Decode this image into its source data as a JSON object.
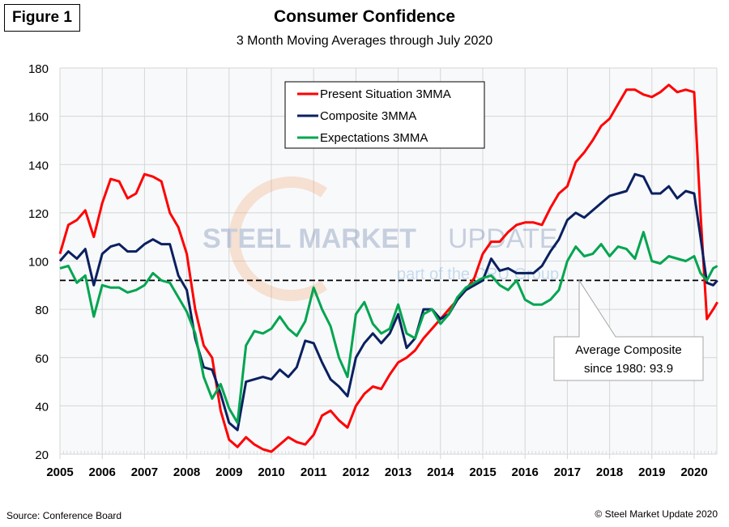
{
  "figure_label": "Figure 1",
  "source": "Source: Conference Board",
  "copyright": "© Steel Market Update 2020",
  "watermark": {
    "line1_bold": "STEEL MARKET",
    "line1_light": "UPDATE",
    "line2": "part of the CRU Group"
  },
  "colors": {
    "present": "#ff0000",
    "composite": "#0a2060",
    "expectations": "#00a550",
    "average": "#000000",
    "grid": "#d6d6d6",
    "plot_bg": "#f8f9fb"
  },
  "chart_data": {
    "type": "line",
    "title": "Consumer Confidence",
    "subtitle": "3 Month Moving Averages through July 2020",
    "xlabel": "",
    "ylabel": "",
    "xlim": [
      2005.0,
      2020.6
    ],
    "ylim": [
      20,
      180
    ],
    "yticks": [
      20,
      40,
      60,
      80,
      100,
      120,
      140,
      160,
      180
    ],
    "xticks": [
      "2005",
      "2006",
      "2007",
      "2008",
      "2009",
      "2010",
      "2011",
      "2012",
      "2013",
      "2014",
      "2015",
      "2016",
      "2017",
      "2018",
      "2019",
      "2020"
    ],
    "grid": true,
    "legend": {
      "position": "top-center",
      "entries": [
        "Present Situation 3MMA",
        "Composite 3MMA",
        "Expectations 3MMA"
      ]
    },
    "annotation": {
      "text_line1": "Average Composite",
      "text_line2": "since 1980: 93.9",
      "value": 92
    },
    "x": [
      2005.0,
      2005.2,
      2005.4,
      2005.6,
      2005.8,
      2006.0,
      2006.2,
      2006.4,
      2006.6,
      2006.8,
      2007.0,
      2007.2,
      2007.4,
      2007.6,
      2007.8,
      2008.0,
      2008.2,
      2008.4,
      2008.6,
      2008.8,
      2009.0,
      2009.2,
      2009.4,
      2009.6,
      2009.8,
      2010.0,
      2010.2,
      2010.4,
      2010.6,
      2010.8,
      2011.0,
      2011.2,
      2011.4,
      2011.6,
      2011.8,
      2012.0,
      2012.2,
      2012.4,
      2012.6,
      2012.8,
      2013.0,
      2013.2,
      2013.4,
      2013.6,
      2013.8,
      2014.0,
      2014.2,
      2014.4,
      2014.6,
      2014.8,
      2015.0,
      2015.2,
      2015.4,
      2015.6,
      2015.8,
      2016.0,
      2016.2,
      2016.4,
      2016.6,
      2016.8,
      2017.0,
      2017.2,
      2017.4,
      2017.6,
      2017.8,
      2018.0,
      2018.2,
      2018.4,
      2018.6,
      2018.8,
      2019.0,
      2019.2,
      2019.4,
      2019.6,
      2019.8,
      2020.0,
      2020.15,
      2020.3,
      2020.45,
      2020.55
    ],
    "series": [
      {
        "name": "Present Situation 3MMA",
        "key": "present",
        "values": [
          103,
          115,
          117,
          121,
          110,
          124,
          134,
          133,
          126,
          128,
          136,
          135,
          133,
          120,
          114,
          103,
          80,
          65,
          60,
          38,
          26,
          23,
          27,
          24,
          22,
          21,
          24,
          27,
          25,
          24,
          28,
          36,
          38,
          34,
          31,
          40,
          45,
          48,
          47,
          53,
          58,
          60,
          63,
          68,
          72,
          76,
          80,
          84,
          88,
          93,
          103,
          108,
          108,
          112,
          115,
          116,
          116,
          115,
          122,
          128,
          131,
          141,
          145,
          150,
          156,
          159,
          165,
          171,
          171,
          169,
          168,
          170,
          173,
          170,
          171,
          170,
          120,
          76,
          80,
          83
        ]
      },
      {
        "name": "Composite 3MMA",
        "key": "composite",
        "values": [
          100,
          104,
          101,
          105,
          90,
          103,
          106,
          107,
          104,
          104,
          107,
          109,
          107,
          107,
          94,
          88,
          68,
          56,
          55,
          45,
          33,
          30,
          50,
          51,
          52,
          51,
          55,
          52,
          56,
          67,
          66,
          58,
          51,
          48,
          44,
          60,
          66,
          70,
          66,
          70,
          78,
          64,
          68,
          80,
          80,
          76,
          78,
          84,
          88,
          90,
          92,
          101,
          96,
          97,
          95,
          95,
          95,
          98,
          104,
          109,
          117,
          120,
          118,
          121,
          124,
          127,
          128,
          129,
          136,
          135,
          128,
          128,
          131,
          126,
          129,
          128,
          110,
          91,
          90,
          92
        ]
      },
      {
        "name": "Expectations 3MMA",
        "key": "expectations",
        "values": [
          97,
          98,
          91,
          94,
          77,
          90,
          89,
          89,
          87,
          88,
          90,
          95,
          92,
          91,
          85,
          79,
          70,
          52,
          43,
          49,
          39,
          33,
          65,
          71,
          70,
          72,
          77,
          72,
          69,
          75,
          89,
          80,
          73,
          60,
          52,
          78,
          83,
          74,
          70,
          72,
          82,
          70,
          68,
          78,
          80,
          74,
          78,
          85,
          89,
          91,
          93,
          94,
          90,
          88,
          92,
          84,
          82,
          82,
          84,
          88,
          100,
          106,
          102,
          103,
          107,
          102,
          106,
          105,
          101,
          112,
          100,
          99,
          102,
          101,
          100,
          102,
          95,
          92,
          97,
          98
        ]
      }
    ]
  }
}
